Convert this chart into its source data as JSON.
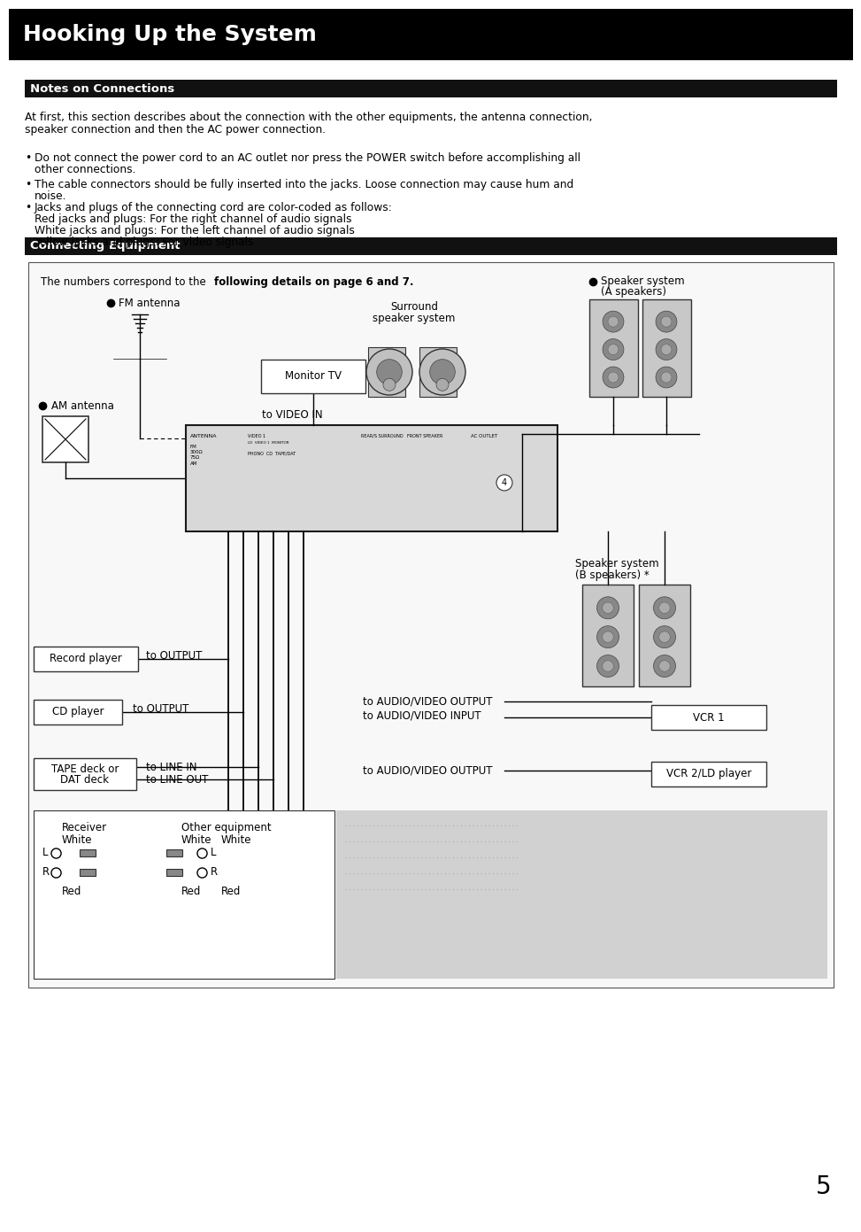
{
  "title": "Hooking Up the System",
  "title_bg": "#000000",
  "title_color": "#ffffff",
  "title_fontsize": 18,
  "section1_title": "Notes on Connections",
  "section1_bg": "#1a1a1a",
  "section1_color": "#ffffff",
  "section1_fontsize": 9.5,
  "intro_text1": "At first, this section describes about the connection with the other equipments, the antenna connection,",
  "intro_text2": "speaker connection and then the AC power connection.",
  "bullets": [
    "Do not connect the power cord to an AC outlet nor press the POWER switch before accomplishing all\n  other connections.",
    "The cable connectors should be fully inserted into the jacks. Loose connection may cause hum and\n  noise.",
    "Jacks and plugs of the connecting cord are color-coded as follows:\n  Red jacks and plugs: For the right channel of audio signals\n  White jacks and plugs: For the left channel of audio signals\n  Yellow jacks and plugs: For video signals"
  ],
  "section2_title": "Connecting Equipment",
  "section2_bg": "#1a1a1a",
  "section2_color": "#ffffff",
  "section2_fontsize": 9.5,
  "page_number": "5",
  "bg_color": "#ffffff",
  "body_fontsize": 8.8
}
